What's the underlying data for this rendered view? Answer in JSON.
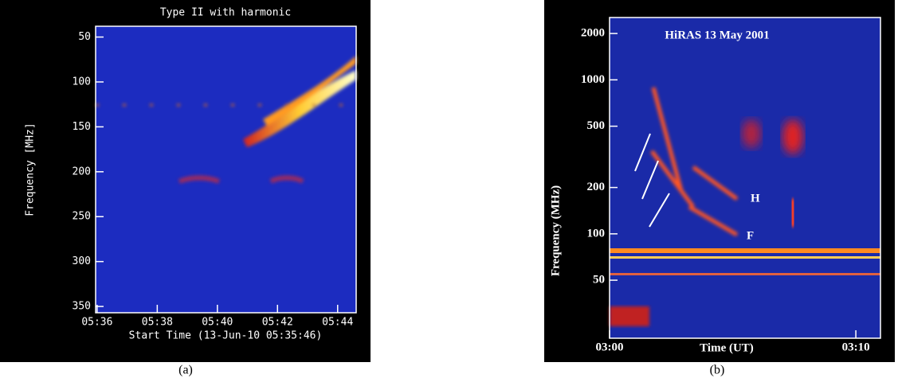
{
  "chart_data": [
    {
      "type": "spectrogram",
      "caption": "(a)",
      "title": "Type II with harmonic",
      "ylabel": "Frequency [MHz]",
      "xlabel": "Start Time (13-Jun-10 05:35:46)",
      "ylim": [
        357,
        38
      ],
      "yticks": [
        50,
        100,
        150,
        200,
        250,
        300,
        350
      ],
      "xlim": [
        "05:35:57",
        "05:44:37"
      ],
      "xticks": [
        "05:36",
        "05:38",
        "05:40",
        "05:42",
        "05:44"
      ]
    },
    {
      "type": "spectrogram",
      "caption": "(b)",
      "title": "HiRAS 13 May 2001",
      "ylabel": "Frequency (MHz)",
      "xlabel": "Time (UT)",
      "log_y": true,
      "ylim": [
        21,
        2540
      ],
      "yticks": [
        50,
        100,
        200,
        500,
        1000,
        2000
      ],
      "xlim": [
        "03:00",
        "03:11"
      ],
      "xticks": [
        "03:00",
        "03:10"
      ],
      "annotations": [
        "H",
        "F"
      ]
    }
  ]
}
